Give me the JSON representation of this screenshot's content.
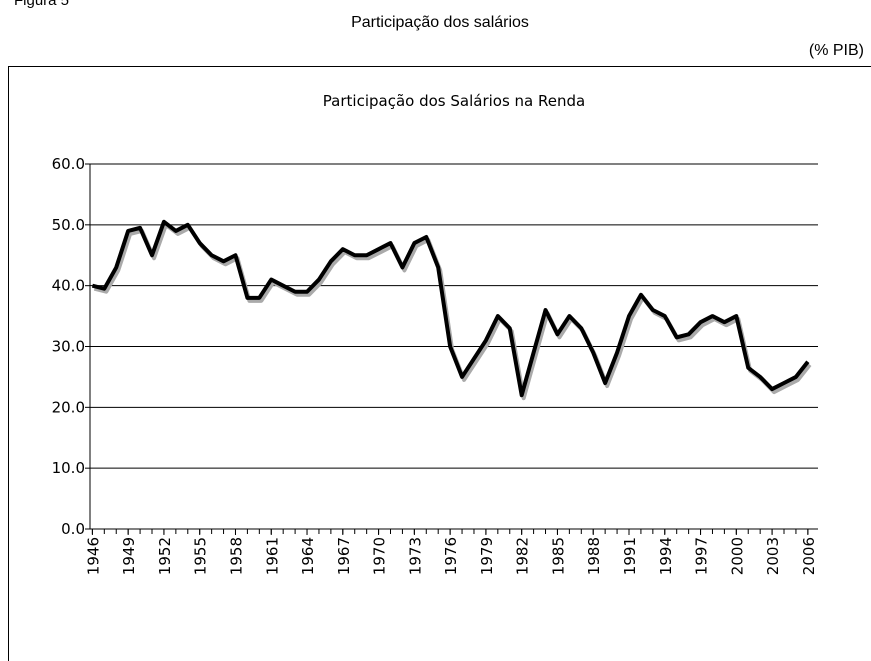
{
  "figure_label": "Figura 5",
  "heading": "Participação dos salários",
  "unit": "(% PIB)",
  "chart_data": {
    "type": "line",
    "title": "Participação dos Salários na Renda",
    "x": [
      1946,
      1947,
      1948,
      1949,
      1950,
      1951,
      1952,
      1953,
      1954,
      1955,
      1956,
      1957,
      1958,
      1959,
      1960,
      1961,
      1962,
      1963,
      1964,
      1965,
      1966,
      1967,
      1968,
      1969,
      1970,
      1971,
      1972,
      1973,
      1974,
      1975,
      1976,
      1977,
      1978,
      1979,
      1980,
      1981,
      1982,
      1983,
      1984,
      1985,
      1986,
      1987,
      1988,
      1989,
      1990,
      1991,
      1992,
      1993,
      1994,
      1995,
      1996,
      1997,
      1998,
      1999,
      2000,
      2001,
      2002,
      2003,
      2004,
      2005,
      2006
    ],
    "series": [
      {
        "color": "#000000",
        "shadow_color": "#aaaaaa",
        "values": [
          40,
          39.5,
          43,
          49,
          49.5,
          45,
          50.5,
          49,
          50,
          47,
          45,
          44,
          45,
          38,
          38,
          41,
          40,
          39,
          39,
          41,
          44,
          46,
          45,
          45,
          46,
          47,
          43,
          47,
          48,
          43,
          30,
          25,
          28,
          31,
          35,
          33,
          22,
          29,
          36,
          32,
          35,
          33,
          29,
          24,
          29,
          35,
          38.5,
          36,
          35,
          31.5,
          32,
          34,
          35,
          34,
          35,
          26.5,
          25,
          23,
          24,
          25,
          27.5
        ]
      }
    ],
    "xlim": [
      1945.8,
      2006.85
    ],
    "xticks": [
      1946,
      1949,
      1952,
      1955,
      1958,
      1961,
      1964,
      1967,
      1970,
      1973,
      1976,
      1979,
      1982,
      1985,
      1988,
      1991,
      1994,
      1997,
      2000,
      2003,
      2006
    ],
    "ylim": [
      0,
      60
    ],
    "yticks": [
      {
        "value": 0,
        "label": "0.0"
      },
      {
        "value": 10,
        "label": "10.0"
      },
      {
        "value": 20,
        "label": "20.0"
      },
      {
        "value": 30,
        "label": "30.0"
      },
      {
        "value": 40,
        "label": "40.0"
      },
      {
        "value": 50,
        "label": "50.0"
      },
      {
        "value": 60,
        "label": "60.0"
      }
    ],
    "grid": true
  }
}
